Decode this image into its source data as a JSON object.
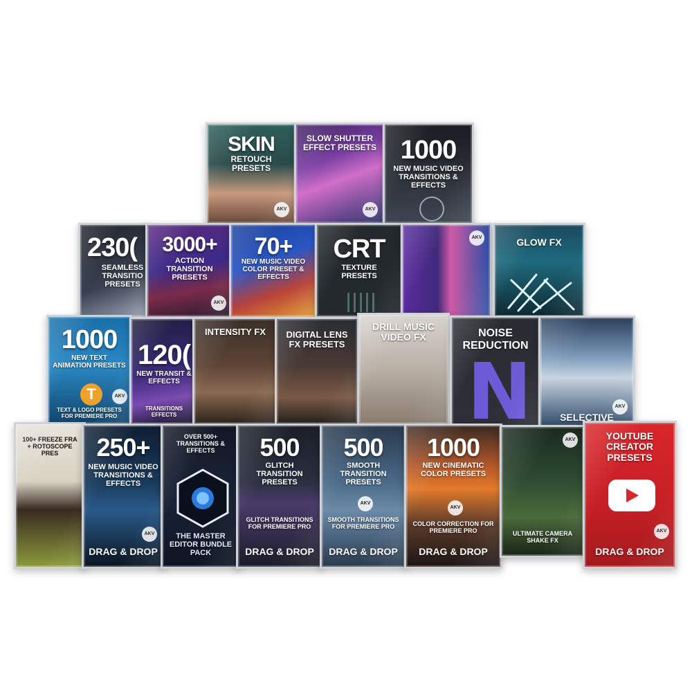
{
  "cards": {
    "skin": {
      "big": "SKIN",
      "sub": "RETOUCH PRESETS",
      "logo": "AKV"
    },
    "slow_shutter": {
      "title": "SLOW SHUTTER EFFECT PRESETS",
      "logo": "AKV"
    },
    "music_1000": {
      "big": "1000",
      "sub": "NEW MUSIC VIDEO TRANSITIONS & EFFECTS"
    },
    "seamless": {
      "big": "230(",
      "sub": "SEAMLESS TRANSITIO PRESETS"
    },
    "action": {
      "big": "3000+",
      "sub": "ACTION TRANSITION PRESETS",
      "logo": "AKV"
    },
    "color70": {
      "big": "70+",
      "sub": "NEW MUSIC VIDEO COLOR PRESET & EFFECTS"
    },
    "crt": {
      "big": "CRT",
      "sub": "TEXTURE PRESETS"
    },
    "dancer": {
      "logo": "AKV"
    },
    "glow": {
      "title": "GLOW FX"
    },
    "text_anim": {
      "big": "1000",
      "sub": "NEW TEXT ANIMATION PRESETS",
      "badge": "T",
      "foot": "TEXT & LOGO PRESETS FOR PREMIERE PRO",
      "logo": "AKV"
    },
    "trans1200": {
      "big": "120(",
      "sub": "NEW TRANSIT & EFFECTS",
      "foot": "TRANSITIONS EFFECTS"
    },
    "intensity": {
      "title": "INTENSITY FX"
    },
    "digital_lens": {
      "title": "DIGITAL LENS FX PRESETS"
    },
    "drill": {
      "title": "DRILL MUSIC VIDEO FX"
    },
    "noise": {
      "title": "NOISE REDUCTION",
      "letter": "N"
    },
    "selective": {
      "title": "SELECTIVE",
      "logo": "AKV"
    },
    "freeze": {
      "title": "100+ FREEZE FRA + ROTOSCOPE PRES"
    },
    "mv250": {
      "big": "250+",
      "sub": "NEW MUSIC VIDEO TRANSITIONS & EFFECTS",
      "foot": "DRAG & DROP",
      "logo": "AKV"
    },
    "master": {
      "top": "OVER 500+ TRANSITIONS & EFFECTS",
      "title": "THE MASTER EDITOR BUNDLE PACK"
    },
    "glitch": {
      "big": "500",
      "sub": "GLITCH TRANSITION PRESETS",
      "mid": "GLITCH TRANSITIONS FOR PREMIERE PRO",
      "foot": "DRAG & DROP"
    },
    "smooth": {
      "big": "500",
      "sub": "SMOOTH TRANSITION PRESETS",
      "mid": "SMOOTH TRANSITIONS FOR PREMIERE PRO",
      "foot": "DRAG & DROP",
      "logo": "AKV"
    },
    "cinematic": {
      "big": "1000",
      "sub": "NEW CINEMATIC COLOR PRESETS",
      "mid": "COLOR CORRECTION FOR PREMIERE PRO",
      "foot": "DRAG & DROP",
      "logo": "AKV"
    },
    "camera_shake": {
      "title": "ULTIMATE CAMERA SHAKE FX",
      "logo": "AKV"
    },
    "youtube": {
      "title": "YOUTUBE CREATOR PRESETS",
      "foot": "DRAG & DROP",
      "logo": "AKV"
    }
  },
  "colors": {
    "youtube_red": "#d9262b",
    "noise_purple": "#6b5bd6",
    "cinematic_orange": "#e37a2a"
  }
}
